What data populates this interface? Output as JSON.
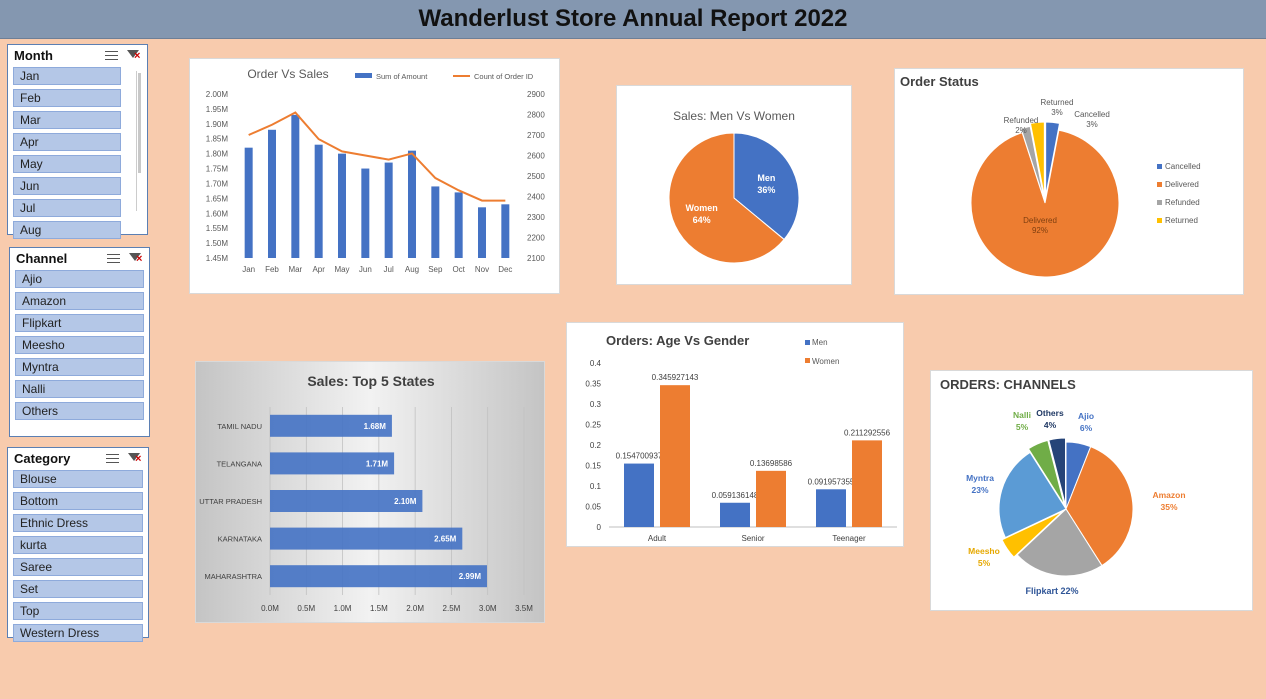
{
  "report_title": "Wanderlust Store Annual Report 2022",
  "slicers": {
    "month": {
      "title": "Month",
      "items": [
        "Jan",
        "Feb",
        "Mar",
        "Apr",
        "May",
        "Jun",
        "Jul",
        "Aug"
      ]
    },
    "channel": {
      "title": "Channel",
      "items": [
        "Ajio",
        "Amazon",
        "Flipkart",
        "Meesho",
        "Myntra",
        "Nalli",
        "Others"
      ]
    },
    "category": {
      "title": "Category",
      "items": [
        "Blouse",
        "Bottom",
        "Ethnic Dress",
        "kurta",
        "Saree",
        "Set",
        "Top",
        "Western Dress"
      ]
    }
  },
  "icons": {
    "multi_select": "multi-select-icon",
    "clear_filter": "clear-filter-icon"
  },
  "colors": {
    "blue": "#4472c4",
    "orange": "#ed7d31",
    "gray": "#a5a5a5",
    "yellow": "#ffc000",
    "green": "#70ad47",
    "navy": "#264478",
    "light_blue": "#5b9bd5"
  },
  "chart_data": [
    {
      "id": "order-vs-sales",
      "type": "bar",
      "title": "Order Vs Sales",
      "categories": [
        "Jan",
        "Feb",
        "Mar",
        "Apr",
        "May",
        "Jun",
        "Jul",
        "Aug",
        "Sep",
        "Oct",
        "Nov",
        "Dec"
      ],
      "series": [
        {
          "name": "Sum of Amount",
          "type": "bar",
          "axis": "left",
          "values": [
            1.82,
            1.88,
            1.93,
            1.83,
            1.8,
            1.75,
            1.77,
            1.81,
            1.69,
            1.67,
            1.62,
            1.63
          ]
        },
        {
          "name": "Count of Order ID",
          "type": "line",
          "axis": "right",
          "values": [
            2700,
            2750,
            2810,
            2680,
            2620,
            2600,
            2580,
            2610,
            2490,
            2430,
            2380,
            2380
          ]
        }
      ],
      "left_ticks": [
        "2.00M",
        "1.95M",
        "1.90M",
        "1.85M",
        "1.80M",
        "1.75M",
        "1.70M",
        "1.65M",
        "1.60M",
        "1.55M",
        "1.50M",
        "1.45M"
      ],
      "right_ticks": [
        "2900",
        "2800",
        "2700",
        "2600",
        "2500",
        "2400",
        "2300",
        "2200",
        "2100"
      ],
      "ylim_left": [
        1.45,
        2.0
      ],
      "ylim_right": [
        2100,
        2900
      ]
    },
    {
      "id": "men-vs-women",
      "type": "pie",
      "title": "Sales: Men Vs Women",
      "slices": [
        {
          "name": "Men",
          "value": 36,
          "label": "36%"
        },
        {
          "name": "Women",
          "value": 64,
          "label": "64%"
        }
      ]
    },
    {
      "id": "order-status",
      "type": "pie",
      "title": "Order Status",
      "slices": [
        {
          "name": "Cancelled",
          "value": 3,
          "label": "3%"
        },
        {
          "name": "Delivered",
          "value": 92,
          "label": "92%"
        },
        {
          "name": "Refunded",
          "value": 2,
          "label": "2%"
        },
        {
          "name": "Returned",
          "value": 3,
          "label": "3%"
        }
      ],
      "legend": [
        "Cancelled",
        "Delivered",
        "Refunded",
        "Returned"
      ]
    },
    {
      "id": "top-5-states",
      "type": "bar",
      "orientation": "horizontal",
      "title": "Sales: Top 5 States",
      "categories": [
        "TAMIL NADU",
        "TELANGANA",
        "UTTAR PRADESH",
        "KARNATAKA",
        "MAHARASHTRA"
      ],
      "values": [
        1.68,
        1.71,
        2.1,
        2.65,
        2.99
      ],
      "labels": [
        "1.68M",
        "1.71M",
        "2.10M",
        "2.65M",
        "2.99M"
      ],
      "x_ticks": [
        "0.0M",
        "0.5M",
        "1.0M",
        "1.5M",
        "2.0M",
        "2.5M",
        "3.0M",
        "3.5M"
      ],
      "xlim": [
        0,
        3.5
      ]
    },
    {
      "id": "age-vs-gender",
      "type": "bar",
      "title": "Orders: Age Vs Gender",
      "categories": [
        "Adult",
        "Senior",
        "Teenager"
      ],
      "series": [
        {
          "name": "Men",
          "values": [
            0.154700937,
            0.059136148,
            0.091957355
          ],
          "labels": [
            "0.154700937",
            "0.059136148",
            "0.091957355"
          ]
        },
        {
          "name": "Women",
          "values": [
            0.345927143,
            0.13698586,
            0.211292556
          ],
          "labels": [
            "0.345927143",
            "0.13698586",
            "0.211292556"
          ]
        }
      ],
      "y_ticks": [
        "0.4",
        "0.35",
        "0.3",
        "0.25",
        "0.2",
        "0.15",
        "0.1",
        "0.05",
        "0"
      ],
      "ylim": [
        0,
        0.4
      ]
    },
    {
      "id": "orders-channels",
      "type": "pie",
      "title": "ORDERS: CHANNELS",
      "slices": [
        {
          "name": "Ajio",
          "value": 6,
          "label": "6%"
        },
        {
          "name": "Amazon",
          "value": 35,
          "label": "35%"
        },
        {
          "name": "Flipkart",
          "value": 22,
          "label": "22%"
        },
        {
          "name": "Meesho",
          "value": 5,
          "label": "5%"
        },
        {
          "name": "Myntra",
          "value": 23,
          "label": "23%"
        },
        {
          "name": "Nalli",
          "value": 5,
          "label": "5%"
        },
        {
          "name": "Others",
          "value": 4,
          "label": "4%"
        }
      ]
    }
  ]
}
